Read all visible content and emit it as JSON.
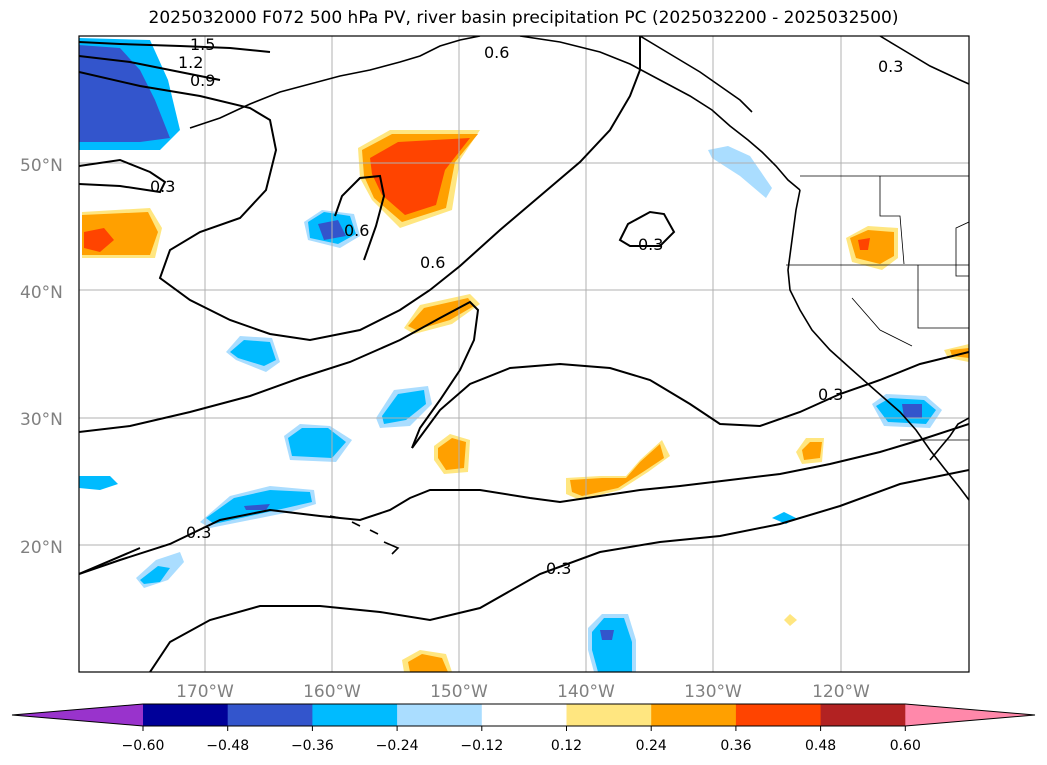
{
  "title": "2025032000 F072 500 hPa PV, river basin precipitation PC (2025032200 - 2025032500)",
  "map": {
    "latitude_labels": [
      "20°N",
      "30°N",
      "40°N",
      "50°N"
    ],
    "longitude_labels": [
      "170°W",
      "160°W",
      "150°W",
      "140°W",
      "130°W",
      "120°W"
    ],
    "contour_labels": [
      "1.5",
      "1.2",
      "0.9",
      "0.6",
      "0.3",
      "0.3",
      "0.6",
      "0.6",
      "0.3",
      "0.3",
      "0.3",
      "0.3"
    ]
  },
  "colorbar": {
    "ticks": [
      "−0.60",
      "−0.48",
      "−0.36",
      "−0.24",
      "−0.12",
      "0.12",
      "0.24",
      "0.36",
      "0.48",
      "0.60"
    ],
    "colors": [
      "#9933cc",
      "#000099",
      "#3355cc",
      "#00bbff",
      "#aaddff",
      "#ffffff",
      "#ffe680",
      "#ffa000",
      "#ff4400",
      "#b22222",
      "#ff88aa"
    ]
  }
}
